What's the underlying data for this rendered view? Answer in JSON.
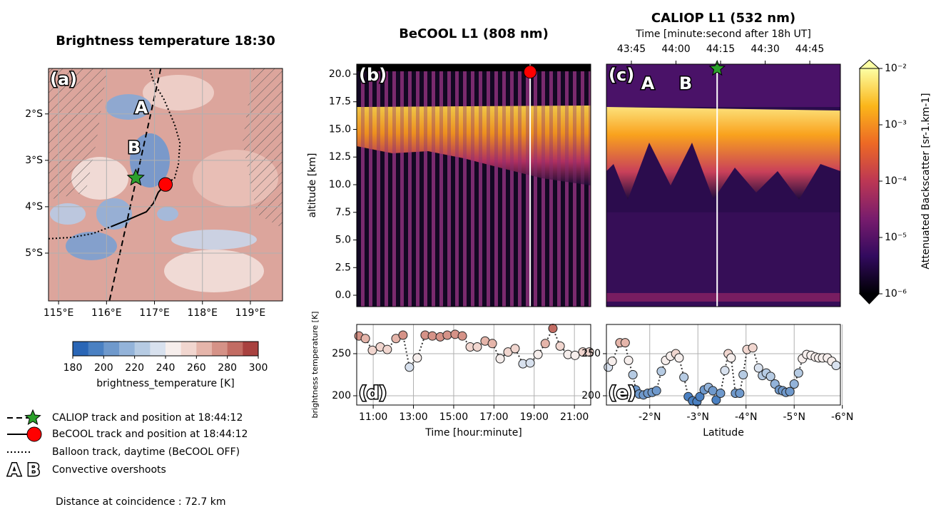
{
  "chart_data": [
    {
      "type": "map",
      "title": "Brightness temperature 18:30",
      "panel_label": "(a)",
      "xlim": [
        114.79,
        119.67
      ],
      "ylim": [
        -6.03,
        -1.02
      ],
      "xticks": [
        {
          "value": 115,
          "label": "115°E"
        },
        {
          "value": 116,
          "label": "116°E"
        },
        {
          "value": 117,
          "label": "117°E"
        },
        {
          "value": 118,
          "label": "118°E"
        },
        {
          "value": 119,
          "label": "119°E"
        }
      ],
      "yticks": [
        {
          "value": -2,
          "label": "2°S"
        },
        {
          "value": -3,
          "label": "3°S"
        },
        {
          "value": -4,
          "label": "4°S"
        },
        {
          "value": -5,
          "label": "5°S"
        }
      ],
      "grid": true,
      "series": [
        {
          "name": "CALIOP track and position at 18:44:12",
          "style": "dashed",
          "color": "#000000",
          "x": [
            117.13,
            116.06
          ],
          "y": [
            -1.02,
            -6.03
          ],
          "marker": {
            "x": 116.61,
            "y": -3.38,
            "shape": "star",
            "color": "#2ca02c"
          }
        },
        {
          "name": "BeCOOL track and position at 18:44:12",
          "style": "solid",
          "color": "#000000",
          "x": [
            116.09,
            116.38,
            116.83,
            116.98,
            117.08,
            117.23
          ],
          "y": [
            -4.43,
            -4.31,
            -4.11,
            -3.92,
            -3.69,
            -3.52
          ],
          "marker": {
            "x": 117.23,
            "y": -3.52,
            "shape": "circle",
            "color": "#ff0000"
          }
        },
        {
          "name": "Balloon track, daytime (BeCOOL OFF)",
          "style": "dotted",
          "color": "#000000",
          "x": [
            114.79,
            115.27,
            115.71,
            116.09,
            null,
            117.23,
            117.42,
            117.5,
            117.53,
            117.42,
            117.2,
            116.98,
            116.9
          ],
          "y": [
            -4.69,
            -4.66,
            -4.58,
            -4.43,
            null,
            -3.52,
            -3.38,
            -3.08,
            -2.62,
            -2.23,
            -1.69,
            -1.31,
            -1.02
          ]
        }
      ],
      "annotations": [
        "A",
        "B"
      ],
      "annotation_legend": "Convective overshoots",
      "colorbar": {
        "label": "brightness_temperature [K]",
        "lim": [
          180,
          300
        ],
        "ticks": [
          180,
          200,
          220,
          240,
          260,
          280,
          300
        ],
        "colors": [
          "#2a66b6",
          "#4a80c2",
          "#6f99cc",
          "#93b3d9",
          "#b6cbe3",
          "#d8e1ee",
          "#f6eeec",
          "#f1d6cf",
          "#e5b5aa",
          "#d59287",
          "#c26c63",
          "#a8413f"
        ]
      },
      "note": "Distance at coincidence : 72.7 km"
    },
    {
      "type": "curtain",
      "title": "BeCOOL L1 (808 nm)",
      "panel_label": "(b)",
      "ylabel": "altitude [km]",
      "xlim": [
        10.18,
        21.81
      ],
      "ylim": [
        -1.03,
        20.9
      ],
      "yticks": [
        {
          "value": 0,
          "label": "0.0"
        },
        2.5,
        {
          "value": 5,
          "label": "5.0"
        },
        7.5,
        {
          "value": 10,
          "label": "10.0"
        },
        12.5,
        {
          "value": 15,
          "label": "15.0"
        },
        17.5,
        {
          "value": 20,
          "label": "20.0"
        }
      ],
      "marker": {
        "x": 18.8,
        "y": 20.2,
        "shape": "circle",
        "color": "#ff0000"
      }
    },
    {
      "type": "curtain",
      "title": "CALIOP L1 (532 nm)",
      "panel_label": "(c)",
      "annotations": [
        "A",
        "B"
      ],
      "xlim": [
        -1.1,
        -5.96
      ],
      "ylim": [
        -1.03,
        20.9
      ],
      "x2label": "Time [minute:second after 18h UT]",
      "x2lim": [
        2616.6,
        2695.3
      ],
      "x2ticks": [
        {
          "value": 2625,
          "label": "43:45"
        },
        {
          "value": 2640,
          "label": "44:00"
        },
        {
          "value": 2655,
          "label": "44:15"
        },
        {
          "value": 2670,
          "label": "44:30"
        },
        {
          "value": 2685,
          "label": "44:45"
        }
      ],
      "marker": {
        "x": -3.4,
        "y": 20.5,
        "shape": "star",
        "color": "#2ca02c"
      },
      "colorbar": {
        "label": "Attenuated Backscatter [sr-1.km-1]",
        "log": true,
        "lim": [
          1e-06,
          0.01
        ],
        "ticks": [
          {
            "value": 0.01,
            "label": "10⁻²"
          },
          {
            "value": 0.001,
            "label": "10⁻³"
          },
          {
            "value": 0.0001,
            "label": "10⁻⁴"
          },
          {
            "value": 1e-05,
            "label": "10⁻⁵"
          },
          {
            "value": 1e-06,
            "label": "10⁻⁶"
          }
        ],
        "colors": [
          "#000004",
          "#320a5e",
          "#781c6d",
          "#bc3754",
          "#ed6925",
          "#fbb61a",
          "#fcffa4"
        ]
      }
    },
    {
      "type": "scatter",
      "panel_label": "(d)",
      "ylabel": "brightness temperature [K]",
      "xlabel": "Time [hour:minute]",
      "x": [
        10.29,
        10.61,
        10.96,
        11.35,
        11.7,
        12.13,
        12.48,
        12.8,
        13.19,
        13.58,
        13.94,
        14.33,
        14.68,
        15.07,
        15.43,
        15.82,
        16.17,
        16.56,
        16.92,
        17.31,
        17.7,
        18.05,
        18.44,
        18.8,
        19.19,
        19.55,
        19.93,
        20.29,
        20.68,
        21.03,
        21.42,
        21.74
      ],
      "values": [
        271,
        268,
        254,
        258,
        255,
        268,
        272,
        234,
        245,
        272,
        271,
        270,
        272,
        273,
        271,
        258,
        258,
        265,
        262,
        244,
        252,
        256,
        238,
        239,
        249,
        262,
        280,
        259,
        249,
        248,
        252,
        252
      ],
      "xlim": [
        10.18,
        21.81
      ],
      "ylim": [
        189,
        284.7
      ],
      "xticks": [
        {
          "value": 11,
          "label": "11:00"
        },
        {
          "value": 13,
          "label": "13:00"
        },
        {
          "value": 15,
          "label": "15:00"
        },
        {
          "value": 17,
          "label": "17:00"
        },
        {
          "value": 19,
          "label": "19:00"
        },
        {
          "value": 21,
          "label": "21:00"
        }
      ],
      "yticks": [
        200,
        250
      ],
      "grid": true
    },
    {
      "type": "scatter",
      "panel_label": "(e)",
      "xlabel": "Latitude",
      "x": [
        -1.14,
        -1.22,
        -1.38,
        -1.49,
        -1.56,
        -1.65,
        -1.71,
        -1.78,
        -1.87,
        -1.96,
        -2.05,
        -2.14,
        -2.24,
        -2.33,
        -2.43,
        -2.54,
        -2.61,
        -2.71,
        -2.8,
        -2.89,
        -2.98,
        -3.04,
        -3.13,
        -3.22,
        -3.31,
        -3.38,
        -3.47,
        -3.56,
        -3.63,
        -3.69,
        -3.78,
        -3.87,
        -3.94,
        -4.02,
        -4.14,
        -4.26,
        -4.34,
        -4.42,
        -4.51,
        -4.6,
        -4.69,
        -4.76,
        -4.83,
        -4.91,
        -5.0,
        -5.09,
        -5.17,
        -5.26,
        -5.35,
        -5.44,
        -5.51,
        -5.59,
        -5.69,
        -5.78,
        -5.87
      ],
      "values": [
        234,
        241,
        263,
        263,
        242,
        225,
        207,
        202,
        201,
        203,
        204,
        206,
        229,
        242,
        247,
        250,
        245,
        222,
        199,
        194,
        193,
        199,
        207,
        210,
        206,
        195,
        203,
        230,
        250,
        245,
        203,
        203,
        225,
        255,
        257,
        233,
        224,
        227,
        223,
        214,
        207,
        206,
        204,
        205,
        214,
        227,
        244,
        249,
        248,
        246,
        245,
        245,
        245,
        241,
        236
      ],
      "xlim": [
        -1.1,
        -5.96
      ],
      "ylim": [
        189,
        284.7
      ],
      "xticks": [
        {
          "value": -2,
          "label": "-2°N"
        },
        {
          "value": -3,
          "label": "-3°N"
        },
        {
          "value": -4,
          "label": "-4°N"
        },
        {
          "value": -5,
          "label": "-5°N"
        },
        {
          "value": -6,
          "label": "-6°N"
        }
      ],
      "yticks": [
        200,
        250
      ],
      "grid": true
    }
  ]
}
